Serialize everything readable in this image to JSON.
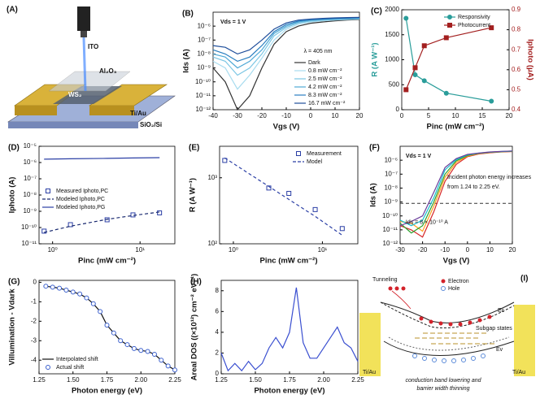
{
  "schematic_a": {
    "label": "(A)",
    "texts": [
      "ITO",
      "Al₂O₃",
      "WS₂",
      "Ti/Au",
      "SiO₂/Si"
    ]
  },
  "schematic_i": {
    "label": "(I)",
    "texts": [
      "Tunneling",
      "Electron",
      "Hole",
      "Ec",
      "Subgap states",
      "Ev",
      "Ti/Au",
      "Ti/Au",
      "conduction band lowering and",
      "barrier width thinning"
    ]
  },
  "chart_data": [
    {
      "type": "line",
      "label": "(B)",
      "xlabel": "Vgs (V)",
      "ylabel": "Ids (A)",
      "ylog": true,
      "xlim": [
        -40,
        20
      ],
      "xticks": [
        -40,
        -30,
        -20,
        -10,
        0,
        10,
        20
      ],
      "ylim": [
        1e-12,
        1e-05
      ],
      "yticks": [
        {
          "value": 1e-12,
          "label": "10⁻¹²"
        },
        {
          "value": 1e-11,
          "label": "10⁻¹¹"
        },
        {
          "value": 1e-10,
          "label": "10⁻¹⁰"
        },
        {
          "value": 1e-09,
          "label": "10⁻⁹"
        },
        {
          "value": 1e-08,
          "label": "10⁻⁸"
        },
        {
          "value": 1e-07,
          "label": "10⁻⁷"
        },
        {
          "value": 1e-06,
          "label": "10⁻⁶"
        }
      ],
      "annotations": [
        "Vds = 1 V",
        "λ = 405 nm"
      ],
      "legend": "lower right",
      "x": [
        -40,
        -35,
        -30,
        -25,
        -20,
        -15,
        -10,
        -5,
        0,
        5,
        10,
        15,
        20
      ],
      "series": [
        {
          "name": "Dark",
          "color": "#333333",
          "values": [
            1e-09,
            1e-10,
            1e-12,
            1e-11,
            1e-09,
            5e-08,
            4e-07,
            1e-06,
            1.6e-06,
            2e-06,
            2.4e-06,
            2.7e-06,
            3e-06
          ]
        },
        {
          "name": "0.8 mW cm⁻²",
          "color": "#a8dcef",
          "values": [
            3e-09,
            1e-09,
            3e-11,
            3e-10,
            5e-09,
            1e-07,
            6e-07,
            1.4e-06,
            2e-06,
            2.4e-06,
            2.7e-06,
            3e-06,
            3.2e-06
          ]
        },
        {
          "name": "2.5 mW cm⁻²",
          "color": "#7cc6e4",
          "values": [
            6e-09,
            3e-09,
            3e-10,
            1e-09,
            1e-08,
            2e-07,
            8e-07,
            1.7e-06,
            2.3e-06,
            2.7e-06,
            3e-06,
            3.2e-06,
            3.4e-06
          ]
        },
        {
          "name": "4.2 mW cm⁻²",
          "color": "#4fa9d6",
          "values": [
            1e-08,
            6e-09,
            1e-09,
            3e-09,
            2e-08,
            3e-07,
            1e-06,
            2e-06,
            2.6e-06,
            3e-06,
            3.2e-06,
            3.4e-06,
            3.6e-06
          ]
        },
        {
          "name": "8.3 mW cm⁻²",
          "color": "#2a7fc0",
          "values": [
            2e-08,
            1e-08,
            3e-09,
            6e-09,
            4e-08,
            4e-07,
            1.3e-06,
            2.3e-06,
            2.9e-06,
            3.2e-06,
            3.5e-06,
            3.7e-06,
            3.9e-06
          ]
        },
        {
          "name": "16.7 mW cm⁻²",
          "color": "#1f4e9b",
          "values": [
            4e-08,
            3e-08,
            1e-08,
            2e-08,
            1e-07,
            6e-07,
            1.7e-06,
            2.7e-06,
            3.2e-06,
            3.6e-06,
            3.9e-06,
            4.1e-06,
            4.3e-06
          ]
        }
      ]
    },
    {
      "type": "line",
      "label": "(C)",
      "xlabel": "Pinc (mW cm⁻²)",
      "ylabel": "R (A W⁻¹)",
      "y2label": "Iphoto (μA)",
      "xlim": [
        0,
        20
      ],
      "xticks": [
        0,
        5,
        10,
        15,
        20
      ],
      "ylim": [
        0,
        2000
      ],
      "yticks": [
        0,
        500,
        1000,
        1500,
        2000
      ],
      "y2lim": [
        0.4,
        0.9
      ],
      "y2ticks": [
        0.4,
        0.5,
        0.6,
        0.7,
        0.8,
        0.9
      ],
      "legend": "upper right",
      "x": [
        0.8,
        2.5,
        4.2,
        8.3,
        16.7
      ],
      "series": [
        {
          "name": "Responsivity",
          "color": "#2a9d9a",
          "marker": "circle",
          "values": [
            1830,
            700,
            580,
            330,
            170
          ]
        },
        {
          "name": "Photocurrent",
          "color": "#a31f1f",
          "marker": "square",
          "axis": "y2",
          "values": [
            0.5,
            0.61,
            0.72,
            0.76,
            0.81
          ]
        }
      ]
    },
    {
      "type": "line",
      "label": "(D)",
      "xlabel": "Pinc (mW cm⁻²)",
      "ylabel": "Iphoto (A)",
      "xlog": true,
      "ylog": true,
      "xlim": [
        0.7,
        25
      ],
      "xticks": [
        {
          "value": 1,
          "label": "10⁰"
        },
        {
          "value": 10,
          "label": "10¹"
        }
      ],
      "ylim": [
        1e-11,
        1e-05
      ],
      "yticks": [
        {
          "value": 1e-11,
          "label": "10⁻¹¹"
        },
        {
          "value": 1e-10,
          "label": "10⁻¹⁰"
        },
        {
          "value": 1e-09,
          "label": "10⁻⁹"
        },
        {
          "value": 1e-08,
          "label": "10⁻⁸"
        },
        {
          "value": 1e-07,
          "label": "10⁻⁷"
        },
        {
          "value": 1e-06,
          "label": "10⁻⁶"
        },
        {
          "value": 1e-05,
          "label": "10⁻⁵"
        }
      ],
      "legend": "center left",
      "x": [
        0.8,
        1.6,
        4.2,
        8.3,
        16.7
      ],
      "series": [
        {
          "name": "Measured Iphoto,PC",
          "color": "#2b3fa5",
          "marker": "square",
          "line": false,
          "values": [
            6e-11,
            1.5e-10,
            3e-10,
            6e-10,
            8e-10
          ]
        },
        {
          "name": "Modeled Iphoto,PC",
          "color": "#1a2a70",
          "dash": true,
          "values": [
            5e-11,
            1.2e-10,
            3.2e-10,
            5.5e-10,
            9e-10
          ]
        },
        {
          "name": "Modeled Iphoto,PG",
          "color": "#2b3fa5",
          "values": [
            1.6e-06,
            1.7e-06,
            1.8e-06,
            1.9e-06,
            2e-06
          ]
        }
      ]
    },
    {
      "type": "line",
      "label": "(E)",
      "xlabel": "Pinc (mW cm⁻²)",
      "ylabel": "R (A W⁻¹)",
      "xlog": true,
      "ylog": true,
      "xlim": [
        0.7,
        25
      ],
      "xticks": [
        {
          "value": 1,
          "label": "10⁰"
        },
        {
          "value": 10,
          "label": "10¹"
        }
      ],
      "ylim": [
        100,
        3000
      ],
      "yticks": [
        {
          "value": 100,
          "label": "10²"
        },
        {
          "value": 1000,
          "label": "10³"
        }
      ],
      "legend": "upper right",
      "x": [
        0.8,
        2.5,
        4.2,
        8.3,
        16.7
      ],
      "series": [
        {
          "name": "Measurement",
          "color": "#2b3fa5",
          "marker": "square",
          "line": false,
          "values": [
            1830,
            700,
            580,
            330,
            170
          ]
        },
        {
          "name": "Model",
          "color": "#2b3fa5",
          "dash": true,
          "values": [
            2000,
            740,
            470,
            260,
            135
          ]
        }
      ]
    },
    {
      "type": "line",
      "label": "(F)",
      "xlabel": "Vgs (V)",
      "ylabel": "Ids (A)",
      "ylog": true,
      "xlim": [
        -30,
        20
      ],
      "xticks": [
        -30,
        -20,
        -10,
        0,
        10,
        20
      ],
      "ylim": [
        1e-12,
        1e-05
      ],
      "yticks": [
        {
          "value": 1e-12,
          "label": "10⁻¹²"
        },
        {
          "value": 1e-11,
          "label": "10⁻¹¹"
        },
        {
          "value": 1e-10,
          "label": "10⁻¹⁰"
        },
        {
          "value": 1e-09,
          "label": "10⁻⁹"
        },
        {
          "value": 1e-08,
          "label": "10⁻⁸"
        },
        {
          "value": 1e-07,
          "label": "10⁻⁷"
        },
        {
          "value": 1e-06,
          "label": "10⁻⁶"
        }
      ],
      "threshold": 8e-10,
      "annotations": [
        "Vds = 1 V",
        "Incident photon energy increases",
        "from 1.24 to 2.25 eV.",
        "Ids = 8 × 10⁻¹⁰ A"
      ],
      "x": [
        -30,
        -25,
        -20,
        -15,
        -10,
        -5,
        0,
        5,
        10,
        15,
        20
      ],
      "series": [
        {
          "color": "#d62728",
          "values": [
            2e-11,
            1e-11,
            3e-12,
            2e-10,
            3e-08,
            5e-07,
            1.8e-06,
            2.8e-06,
            3.4e-06,
            3.9e-06,
            4.2e-06
          ]
        },
        {
          "color": "#ff9f1c",
          "values": [
            4e-11,
            3e-11,
            8e-12,
            5e-10,
            6e-08,
            7e-07,
            2e-06,
            3e-06,
            3.6e-06,
            4e-06,
            4.3e-06
          ]
        },
        {
          "color": "#2ca02c",
          "values": [
            3e-11,
            6e-12,
            2e-11,
            1e-09,
            1e-07,
            9e-07,
            2.2e-06,
            3.1e-06,
            3.7e-06,
            4.1e-06,
            4.4e-06
          ]
        },
        {
          "color": "#17becf",
          "values": [
            5e-11,
            2e-11,
            5e-11,
            2e-09,
            2e-07,
            1.1e-06,
            2.4e-06,
            3.2e-06,
            3.8e-06,
            4.2e-06,
            4.5e-06
          ]
        },
        {
          "color": "#6a3d9a",
          "values": [
            2e-11,
            4e-11,
            1e-10,
            5e-09,
            3e-07,
            1.3e-06,
            2.6e-06,
            3.3e-06,
            3.9e-06,
            4.3e-06,
            4.6e-06
          ]
        }
      ]
    },
    {
      "type": "line",
      "label": "(G)",
      "xlabel": "Photon energy (eV)",
      "ylabel": "Villumination - Vdark",
      "xlim": [
        1.25,
        2.25
      ],
      "xticks": [
        1.25,
        {
          "value": 1.5,
          "label": "1.50"
        },
        1.75,
        {
          "value": 2,
          "label": "2.00"
        },
        2.25
      ],
      "ylim": [
        -4.7,
        0.1
      ],
      "yticks": [
        0,
        -1,
        -2,
        -3,
        -4
      ],
      "legend": "lower left",
      "x": [
        1.3,
        1.35,
        1.4,
        1.45,
        1.5,
        1.55,
        1.6,
        1.65,
        1.7,
        1.75,
        1.8,
        1.85,
        1.9,
        1.95,
        2,
        2.05,
        2.1,
        2.15,
        2.2,
        2.25
      ],
      "series": [
        {
          "name": "Interpolated shift",
          "color": "#111111",
          "values": [
            -0.2,
            -0.25,
            -0.3,
            -0.4,
            -0.5,
            -0.6,
            -0.8,
            -1.1,
            -1.5,
            -2.2,
            -2.6,
            -3,
            -3.2,
            -3.4,
            -3.5,
            -3.55,
            -3.7,
            -4,
            -4.3,
            -4.5
          ]
        },
        {
          "name": "Actual shift",
          "color": "#3a5fcd",
          "marker": "circle",
          "line": false,
          "values": [
            -0.2,
            -0.25,
            -0.3,
            -0.4,
            -0.5,
            -0.6,
            -0.8,
            -1.1,
            -1.5,
            -2.2,
            -2.6,
            -3,
            -3.2,
            -3.4,
            -3.5,
            -3.55,
            -3.7,
            -4,
            -4.3,
            -4.5
          ]
        }
      ]
    },
    {
      "type": "line",
      "label": "(H)",
      "xlabel": "Photon energy (eV)",
      "ylabel": "Areal DOS ((×10¹²) cm⁻² eV⁻¹)",
      "xlim": [
        1.25,
        2.25
      ],
      "xticks": [
        1.25,
        {
          "value": 1.5,
          "label": "1.50"
        },
        1.75,
        {
          "value": 2,
          "label": "2.00"
        },
        2.25
      ],
      "ylim": [
        0,
        9
      ],
      "yticks": [
        0,
        2,
        4,
        6,
        8
      ],
      "x": [
        1.25,
        1.3,
        1.35,
        1.4,
        1.45,
        1.5,
        1.55,
        1.6,
        1.65,
        1.7,
        1.75,
        1.8,
        1.85,
        1.9,
        1.95,
        2,
        2.05,
        2.1,
        2.15,
        2.2,
        2.25
      ],
      "series": [
        {
          "color": "#3a4fd0",
          "values": [
            2,
            0.3,
            1,
            0.3,
            1.2,
            0.4,
            1,
            2.5,
            3.5,
            2.5,
            4,
            8.3,
            3,
            1.5,
            1.5,
            2.5,
            3.5,
            4.5,
            3,
            2.5,
            1.2
          ]
        }
      ]
    }
  ]
}
